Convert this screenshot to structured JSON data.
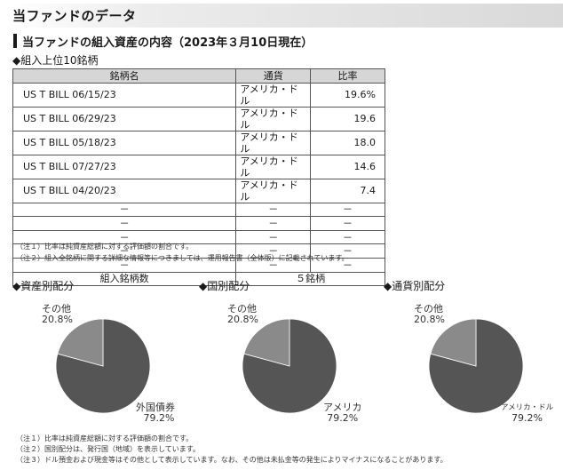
{
  "header": {
    "title": "当ファンドのデータ"
  },
  "section": {
    "title": "当ファンドの組入資産の内容（2023年３月10日現在）"
  },
  "top10": {
    "heading": "◆組入上位10銘柄",
    "columns": [
      "銘柄名",
      "通貨",
      "比率"
    ],
    "rows": [
      {
        "name": "US T BILL 06/15/23",
        "currency": "アメリカ・ドル",
        "ratio": "19.6%"
      },
      {
        "name": "US T BILL 06/29/23",
        "currency": "アメリカ・ドル",
        "ratio": "19.6"
      },
      {
        "name": "US T BILL 05/18/23",
        "currency": "アメリカ・ドル",
        "ratio": "18.0"
      },
      {
        "name": "US T BILL 07/27/23",
        "currency": "アメリカ・ドル",
        "ratio": "14.6"
      },
      {
        "name": "US T BILL 04/20/23",
        "currency": "アメリカ・ドル",
        "ratio": "7.4"
      },
      {
        "name": "－",
        "currency": "－",
        "ratio": "－"
      },
      {
        "name": "－",
        "currency": "－",
        "ratio": "－"
      },
      {
        "name": "－",
        "currency": "－",
        "ratio": "－"
      },
      {
        "name": "－",
        "currency": "－",
        "ratio": "－"
      },
      {
        "name": "－",
        "currency": "－",
        "ratio": "－"
      }
    ],
    "count_label": "組入銘柄数",
    "count_value": "５銘柄",
    "notes": [
      "（注１）比率は純資産総額に対する評価額の割合です。",
      "（注２）組入全銘柄に関する詳細な情報等につきましては、運用報告書（全体版）に記載されています。"
    ]
  },
  "allocations": {
    "colors": {
      "main": "#555555",
      "other": "#8a8a8a"
    },
    "asset": {
      "heading": "◆資産別配分",
      "other_label": "その他",
      "other_pct": "20.8%",
      "main_label": "外国債券",
      "main_pct": "79.2%"
    },
    "country": {
      "heading": "◆国別配分",
      "other_label": "その他",
      "other_pct": "20.8%",
      "main_label": "アメリカ",
      "main_pct": "79.2%"
    },
    "currency": {
      "heading": "◆通貨別配分",
      "other_label": "その他",
      "other_pct": "20.8%",
      "main_label": "アメリカ・ドル",
      "main_pct": "79.2%"
    },
    "notes": [
      "（注１）比率は純資産総額に対する評価額の割合です。",
      "（注２）国別配分は、発行国（地域）を表示しています。",
      "（注３）ドル預金および現金等はその他として表示しています。なお、その他は未払金等の発生によりマイナスになることがあります。"
    ]
  },
  "chart_data": [
    {
      "type": "pie",
      "title": "資産別配分",
      "categories": [
        "外国債券",
        "その他"
      ],
      "values": [
        79.2,
        20.8
      ]
    },
    {
      "type": "pie",
      "title": "国別配分",
      "categories": [
        "アメリカ",
        "その他"
      ],
      "values": [
        79.2,
        20.8
      ]
    },
    {
      "type": "pie",
      "title": "通貨別配分",
      "categories": [
        "アメリカ・ドル",
        "その他"
      ],
      "values": [
        79.2,
        20.8
      ]
    }
  ]
}
